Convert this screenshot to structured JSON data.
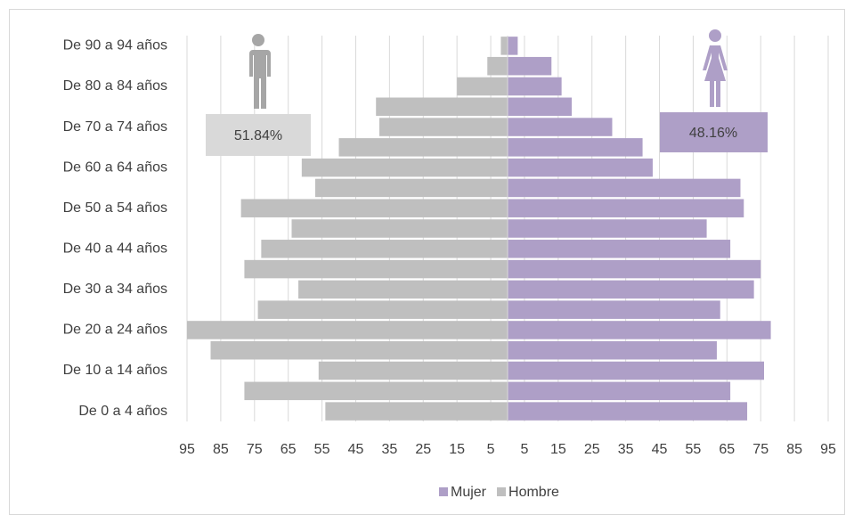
{
  "chart_data": {
    "type": "pyramid",
    "categories": [
      "De 0  a 4 años",
      null,
      "De 10 a 14 años",
      null,
      "De 20 a 24 años",
      null,
      "De 30 a 34 años",
      null,
      "De 40 a 44 años",
      null,
      "De 50 a 54 años",
      null,
      "De 60 a 64 años",
      null,
      "De 70 a 74 años",
      null,
      "De 80 a 84 años",
      null,
      "De 90 a 94 años"
    ],
    "series": [
      {
        "name": "Mujer",
        "color": "#ae9fc7",
        "values": [
          71,
          66,
          76,
          62,
          78,
          63,
          73,
          75,
          66,
          59,
          70,
          69,
          43,
          40,
          31,
          19,
          16,
          13,
          3
        ]
      },
      {
        "name": "Hombre",
        "color": "#bfbfbf",
        "values": [
          -54,
          -78,
          -56,
          -88,
          -95,
          -74,
          -62,
          -78,
          -73,
          -64,
          -79,
          -57,
          -61,
          -50,
          -38,
          -39,
          -15,
          -6,
          -2
        ]
      }
    ],
    "xlim": [
      -95,
      95
    ],
    "xticks": [
      {
        "value": -95,
        "label": "95"
      },
      {
        "value": -85,
        "label": "85"
      },
      {
        "value": -75,
        "label": "75"
      },
      {
        "value": -65,
        "label": "65"
      },
      {
        "value": -55,
        "label": "55"
      },
      {
        "value": -45,
        "label": "45"
      },
      {
        "value": -35,
        "label": "35"
      },
      {
        "value": -25,
        "label": "25"
      },
      {
        "value": -15,
        "label": "15"
      },
      {
        "value": -5,
        "label": "5"
      },
      5,
      15,
      25,
      35,
      45,
      55,
      65,
      75,
      85,
      95
    ],
    "grid": true,
    "legend": "bottom",
    "annotations": [
      "51.84%",
      "48.16%"
    ]
  }
}
